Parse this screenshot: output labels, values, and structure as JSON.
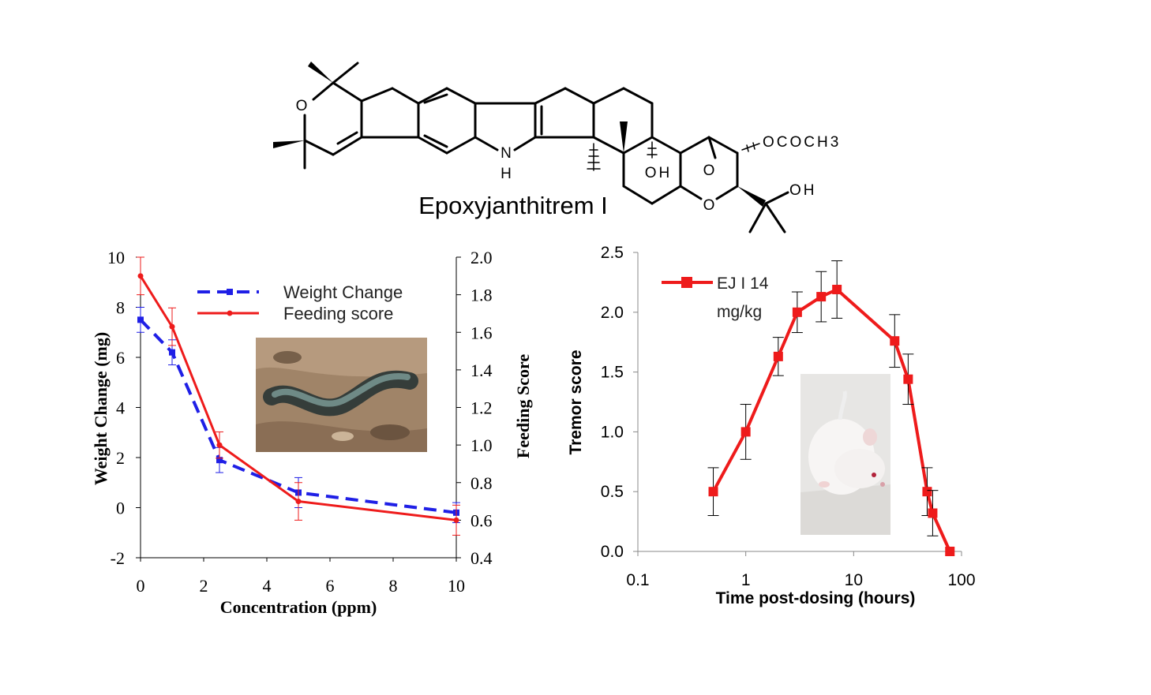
{
  "structure": {
    "name": "Epoxyjanthitrem I",
    "atoms": {
      "o_pyran": "O",
      "nh_n": "N",
      "nh_h": "H",
      "oh_ring": "OH",
      "epox_o": "O",
      "o_lower": "O",
      "acetate": "OCOCH3",
      "oh_side": "OH"
    }
  },
  "photos": {
    "larva": "caterpillar-photo",
    "mouse": "white-mouse-photo"
  },
  "chart_data": [
    {
      "type": "line",
      "xlabel": "Concentration (ppm)",
      "ylabel": "Weight Change (mg)",
      "y2label": "Feeding Score",
      "xlim": [
        0,
        10
      ],
      "ylim": [
        -2,
        10
      ],
      "y2lim": [
        0.4,
        2.0
      ],
      "x_ticks": [
        0,
        2,
        4,
        6,
        8,
        10
      ],
      "y_ticks": [
        -2,
        0,
        2,
        4,
        6,
        8,
        10
      ],
      "y2_ticks": [
        0.4,
        0.6,
        0.8,
        1.0,
        1.2,
        1.4,
        1.6,
        1.8,
        2.0
      ],
      "legend_position": "top-center",
      "series": [
        {
          "name": "Weight Change",
          "axis": "left",
          "color": "#1f1fe6",
          "style": "dashed",
          "marker": "square",
          "x": [
            0,
            1,
            2.5,
            5,
            10
          ],
          "y": [
            7.5,
            6.2,
            1.9,
            0.6,
            -0.2
          ],
          "err": [
            0.5,
            0.5,
            0.5,
            0.6,
            0.4
          ]
        },
        {
          "name": "Feeding score",
          "axis": "right",
          "color": "#ee1b1b",
          "style": "solid",
          "marker": "circle",
          "x": [
            0,
            1,
            2.5,
            5,
            10
          ],
          "y": [
            1.9,
            1.63,
            1.0,
            0.7,
            0.6
          ],
          "err": [
            0.1,
            0.1,
            0.07,
            0.1,
            0.08
          ]
        }
      ]
    },
    {
      "type": "line",
      "xlabel": "Time post-dosing (hours)",
      "ylabel": "Tremor score",
      "xscale": "log",
      "xlim": [
        0.1,
        100
      ],
      "ylim": [
        0,
        2.5
      ],
      "x_ticks": [
        0.1,
        1,
        10,
        100
      ],
      "y_ticks": [
        0.0,
        0.5,
        1.0,
        1.5,
        2.0,
        2.5
      ],
      "legend_position": "top-left",
      "series": [
        {
          "name": "EJ I 14 mg/kg",
          "name_lines": [
            "EJ I 14",
            "mg/kg"
          ],
          "color": "#ee1b1b",
          "marker": "square",
          "x": [
            0.5,
            1,
            2,
            3,
            5,
            7,
            24,
            32,
            48,
            54,
            78
          ],
          "y": [
            0.5,
            1.0,
            1.63,
            2.0,
            2.13,
            2.19,
            1.76,
            1.44,
            0.5,
            0.32,
            0.0
          ],
          "err": [
            0.2,
            0.23,
            0.16,
            0.17,
            0.21,
            0.24,
            0.22,
            0.21,
            0.2,
            0.19,
            0.0
          ]
        }
      ]
    }
  ]
}
